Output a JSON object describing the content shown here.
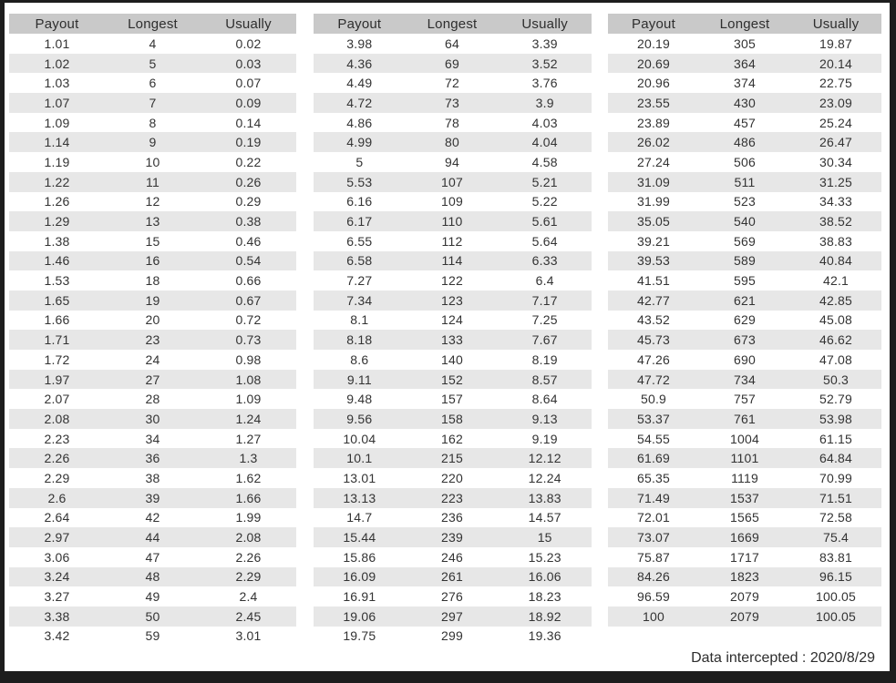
{
  "colors": {
    "frame": "#1d1d1d",
    "page_bg": "#ffffff",
    "header_bg": "#c9c9c9",
    "stripe_bg": "#e7e7e7",
    "text": "#333333"
  },
  "footer": {
    "label": "Data intercepted : 2020/8/29"
  },
  "chart_data": [
    {
      "type": "table",
      "columns": [
        "Payout",
        "Longest",
        "Usually"
      ],
      "rows": [
        [
          "1.01",
          "4",
          "0.02"
        ],
        [
          "1.02",
          "5",
          "0.03"
        ],
        [
          "1.03",
          "6",
          "0.07"
        ],
        [
          "1.07",
          "7",
          "0.09"
        ],
        [
          "1.09",
          "8",
          "0.14"
        ],
        [
          "1.14",
          "9",
          "0.19"
        ],
        [
          "1.19",
          "10",
          "0.22"
        ],
        [
          "1.22",
          "11",
          "0.26"
        ],
        [
          "1.26",
          "12",
          "0.29"
        ],
        [
          "1.29",
          "13",
          "0.38"
        ],
        [
          "1.38",
          "15",
          "0.46"
        ],
        [
          "1.46",
          "16",
          "0.54"
        ],
        [
          "1.53",
          "18",
          "0.66"
        ],
        [
          "1.65",
          "19",
          "0.67"
        ],
        [
          "1.66",
          "20",
          "0.72"
        ],
        [
          "1.71",
          "23",
          "0.73"
        ],
        [
          "1.72",
          "24",
          "0.98"
        ],
        [
          "1.97",
          "27",
          "1.08"
        ],
        [
          "2.07",
          "28",
          "1.09"
        ],
        [
          "2.08",
          "30",
          "1.24"
        ],
        [
          "2.23",
          "34",
          "1.27"
        ],
        [
          "2.26",
          "36",
          "1.3"
        ],
        [
          "2.29",
          "38",
          "1.62"
        ],
        [
          "2.6",
          "39",
          "1.66"
        ],
        [
          "2.64",
          "42",
          "1.99"
        ],
        [
          "2.97",
          "44",
          "2.08"
        ],
        [
          "3.06",
          "47",
          "2.26"
        ],
        [
          "3.24",
          "48",
          "2.29"
        ],
        [
          "3.27",
          "49",
          "2.4"
        ],
        [
          "3.38",
          "50",
          "2.45"
        ],
        [
          "3.42",
          "59",
          "3.01"
        ]
      ]
    },
    {
      "type": "table",
      "columns": [
        "Payout",
        "Longest",
        "Usually"
      ],
      "rows": [
        [
          "3.98",
          "64",
          "3.39"
        ],
        [
          "4.36",
          "69",
          "3.52"
        ],
        [
          "4.49",
          "72",
          "3.76"
        ],
        [
          "4.72",
          "73",
          "3.9"
        ],
        [
          "4.86",
          "78",
          "4.03"
        ],
        [
          "4.99",
          "80",
          "4.04"
        ],
        [
          "5",
          "94",
          "4.58"
        ],
        [
          "5.53",
          "107",
          "5.21"
        ],
        [
          "6.16",
          "109",
          "5.22"
        ],
        [
          "6.17",
          "110",
          "5.61"
        ],
        [
          "6.55",
          "112",
          "5.64"
        ],
        [
          "6.58",
          "114",
          "6.33"
        ],
        [
          "7.27",
          "122",
          "6.4"
        ],
        [
          "7.34",
          "123",
          "7.17"
        ],
        [
          "8.1",
          "124",
          "7.25"
        ],
        [
          "8.18",
          "133",
          "7.67"
        ],
        [
          "8.6",
          "140",
          "8.19"
        ],
        [
          "9.11",
          "152",
          "8.57"
        ],
        [
          "9.48",
          "157",
          "8.64"
        ],
        [
          "9.56",
          "158",
          "9.13"
        ],
        [
          "10.04",
          "162",
          "9.19"
        ],
        [
          "10.1",
          "215",
          "12.12"
        ],
        [
          "13.01",
          "220",
          "12.24"
        ],
        [
          "13.13",
          "223",
          "13.83"
        ],
        [
          "14.7",
          "236",
          "14.57"
        ],
        [
          "15.44",
          "239",
          "15"
        ],
        [
          "15.86",
          "246",
          "15.23"
        ],
        [
          "16.09",
          "261",
          "16.06"
        ],
        [
          "16.91",
          "276",
          "18.23"
        ],
        [
          "19.06",
          "297",
          "18.92"
        ],
        [
          "19.75",
          "299",
          "19.36"
        ]
      ]
    },
    {
      "type": "table",
      "columns": [
        "Payout",
        "Longest",
        "Usually"
      ],
      "rows": [
        [
          "20.19",
          "305",
          "19.87"
        ],
        [
          "20.69",
          "364",
          "20.14"
        ],
        [
          "20.96",
          "374",
          "22.75"
        ],
        [
          "23.55",
          "430",
          "23.09"
        ],
        [
          "23.89",
          "457",
          "25.24"
        ],
        [
          "26.02",
          "486",
          "26.47"
        ],
        [
          "27.24",
          "506",
          "30.34"
        ],
        [
          "31.09",
          "511",
          "31.25"
        ],
        [
          "31.99",
          "523",
          "34.33"
        ],
        [
          "35.05",
          "540",
          "38.52"
        ],
        [
          "39.21",
          "569",
          "38.83"
        ],
        [
          "39.53",
          "589",
          "40.84"
        ],
        [
          "41.51",
          "595",
          "42.1"
        ],
        [
          "42.77",
          "621",
          "42.85"
        ],
        [
          "43.52",
          "629",
          "45.08"
        ],
        [
          "45.73",
          "673",
          "46.62"
        ],
        [
          "47.26",
          "690",
          "47.08"
        ],
        [
          "47.72",
          "734",
          "50.3"
        ],
        [
          "50.9",
          "757",
          "52.79"
        ],
        [
          "53.37",
          "761",
          "53.98"
        ],
        [
          "54.55",
          "1004",
          "61.15"
        ],
        [
          "61.69",
          "1101",
          "64.84"
        ],
        [
          "65.35",
          "1119",
          "70.99"
        ],
        [
          "71.49",
          "1537",
          "71.51"
        ],
        [
          "72.01",
          "1565",
          "72.58"
        ],
        [
          "73.07",
          "1669",
          "75.4"
        ],
        [
          "75.87",
          "1717",
          "83.81"
        ],
        [
          "84.26",
          "1823",
          "96.15"
        ],
        [
          "96.59",
          "2079",
          "100.05"
        ],
        [
          "100",
          "2079",
          "100.05"
        ]
      ]
    }
  ]
}
